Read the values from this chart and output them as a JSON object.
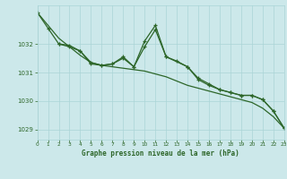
{
  "title": "Graphe pression niveau de la mer (hPa)",
  "bg_color": "#cce8ea",
  "grid_color": "#aad4d6",
  "line_color": "#2d6629",
  "xlim": [
    0,
    23
  ],
  "ylim": [
    1028.65,
    1033.35
  ],
  "yticks": [
    1029,
    1030,
    1031,
    1032
  ],
  "xticks": [
    0,
    1,
    2,
    3,
    4,
    5,
    6,
    7,
    8,
    9,
    10,
    11,
    12,
    13,
    14,
    15,
    16,
    17,
    18,
    19,
    20,
    21,
    22,
    23
  ],
  "series1_x": [
    0,
    1,
    2,
    3,
    4,
    5,
    6,
    7,
    8,
    9,
    10,
    11,
    12,
    13,
    14,
    15,
    16,
    17,
    18,
    19,
    20,
    21,
    22,
    23
  ],
  "series1_y": [
    1033.1,
    1032.65,
    1032.2,
    1031.9,
    1031.6,
    1031.35,
    1031.25,
    1031.2,
    1031.15,
    1031.1,
    1031.05,
    1030.95,
    1030.85,
    1030.7,
    1030.55,
    1030.45,
    1030.35,
    1030.25,
    1030.15,
    1030.05,
    1029.95,
    1029.75,
    1029.45,
    1029.05
  ],
  "series2_x": [
    0,
    1,
    2,
    3,
    4,
    5,
    6,
    7,
    8,
    9,
    10,
    11,
    12,
    13,
    14,
    15,
    16,
    17,
    18,
    19,
    20,
    21,
    22,
    23
  ],
  "series2_y": [
    1033.1,
    1032.55,
    1032.0,
    1031.95,
    1031.75,
    1031.35,
    1031.25,
    1031.3,
    1031.55,
    1031.2,
    1032.1,
    1032.65,
    1031.55,
    1031.4,
    1031.2,
    1030.8,
    1030.6,
    1030.4,
    1030.3,
    1030.2,
    1030.2,
    1030.05,
    1029.65,
    1029.05
  ],
  "series3_x": [
    2,
    3,
    4,
    5,
    6,
    7,
    8,
    9,
    10,
    11,
    12,
    14,
    15,
    16,
    17,
    18,
    19,
    20,
    21,
    22,
    23
  ],
  "series3_y": [
    1032.0,
    1031.9,
    1031.75,
    1031.3,
    1031.25,
    1031.3,
    1031.5,
    1031.2,
    1031.9,
    1032.5,
    1031.55,
    1031.2,
    1030.75,
    1030.55,
    1030.4,
    1030.3,
    1030.2,
    1030.2,
    1030.05,
    1029.65,
    1029.05
  ]
}
